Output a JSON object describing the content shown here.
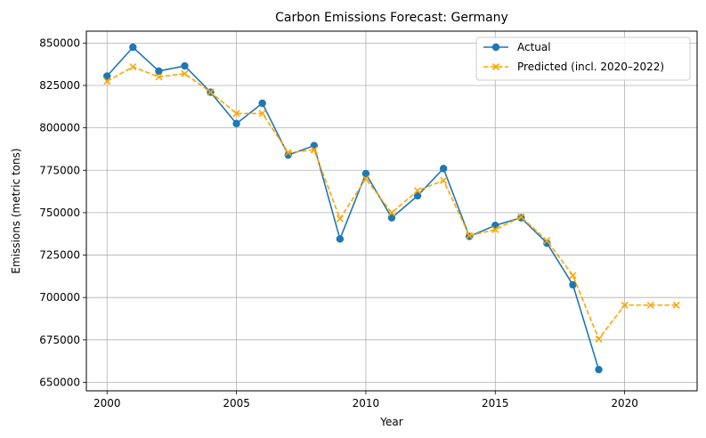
{
  "chart_data": {
    "type": "line",
    "title": "Carbon Emissions Forecast: Germany",
    "xlabel": "Year",
    "ylabel": "Emissions (metric tons)",
    "xlim": [
      1999.2,
      2022.8
    ],
    "ylim": [
      645000,
      857000
    ],
    "x_ticks": [
      2000,
      2005,
      2010,
      2015,
      2020
    ],
    "y_ticks": [
      650000,
      675000,
      700000,
      725000,
      750000,
      775000,
      800000,
      825000,
      850000
    ],
    "grid": true,
    "legend_position": "top-right",
    "series": [
      {
        "name": "Actual",
        "color": "#1f77b4",
        "line_style": "solid",
        "marker": "circle",
        "x": [
          2000,
          2001,
          2002,
          2003,
          2004,
          2005,
          2006,
          2007,
          2008,
          2009,
          2010,
          2011,
          2012,
          2013,
          2014,
          2015,
          2016,
          2017,
          2018,
          2019
        ],
        "values": [
          830500,
          847500,
          833500,
          836500,
          821000,
          802500,
          814500,
          784000,
          789500,
          734500,
          773000,
          747000,
          760000,
          776000,
          736000,
          742500,
          747000,
          732000,
          707500,
          657500
        ]
      },
      {
        "name": "Predicted (incl. 2020–2022)",
        "color": "#ffa500",
        "line_style": "dashed",
        "marker": "x",
        "x": [
          2000,
          2001,
          2002,
          2003,
          2004,
          2005,
          2006,
          2007,
          2008,
          2009,
          2010,
          2011,
          2012,
          2013,
          2014,
          2015,
          2016,
          2017,
          2018,
          2019,
          2020,
          2021,
          2022
        ],
        "values": [
          827500,
          836000,
          830000,
          832000,
          821000,
          808500,
          808500,
          785500,
          787000,
          746500,
          770000,
          750000,
          763000,
          769000,
          736500,
          740000,
          747500,
          733500,
          713000,
          675500,
          695500,
          695500,
          695500
        ]
      }
    ]
  }
}
